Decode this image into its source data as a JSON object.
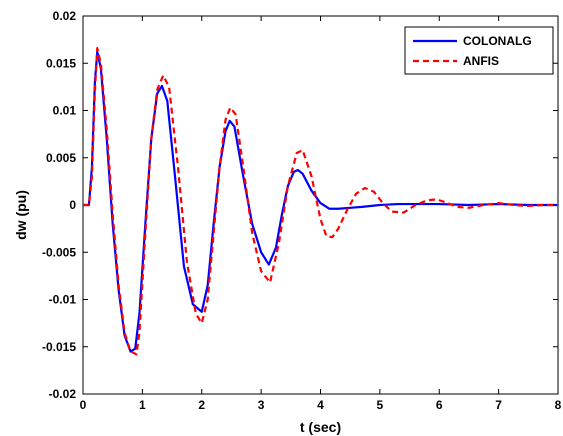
{
  "chart_data": {
    "type": "line",
    "title": "",
    "xlabel": "t (sec)",
    "ylabel": "dw (pu)",
    "xlim": [
      0,
      8
    ],
    "ylim": [
      -0.02,
      0.02
    ],
    "xticks": [
      0,
      1,
      2,
      3,
      4,
      5,
      6,
      7,
      8
    ],
    "xtick_labels": [
      "0",
      "1",
      "2",
      "3",
      "4",
      "5",
      "6",
      "7",
      "8"
    ],
    "yticks": [
      -0.02,
      -0.015,
      -0.01,
      -0.005,
      0,
      0.005,
      0.01,
      0.015,
      0.02
    ],
    "ytick_labels": [
      "-0.02",
      "-0.015",
      "-0.01",
      "-0.005",
      "0",
      "0.005",
      "0.01",
      "0.015",
      "0.02"
    ],
    "grid": false,
    "legend_position": "top-right",
    "series": [
      {
        "name": "COLONALG",
        "color": "#0000ff",
        "style": "solid",
        "x": [
          0,
          0.1,
          0.15,
          0.2,
          0.24,
          0.3,
          0.4,
          0.5,
          0.6,
          0.7,
          0.8,
          0.88,
          0.95,
          1.05,
          1.15,
          1.25,
          1.33,
          1.42,
          1.55,
          1.7,
          1.85,
          2.0,
          2.1,
          2.2,
          2.3,
          2.4,
          2.47,
          2.55,
          2.7,
          2.85,
          3.0,
          3.13,
          3.25,
          3.35,
          3.45,
          3.55,
          3.62,
          3.7,
          3.85,
          4.0,
          4.15,
          4.3,
          4.5,
          4.7,
          5.0,
          5.3,
          5.6,
          6.0,
          6.5,
          7.0,
          7.5,
          8.0
        ],
        "y": [
          0,
          0,
          0.004,
          0.013,
          0.0162,
          0.0145,
          0.007,
          -0.002,
          -0.009,
          -0.0138,
          -0.0155,
          -0.0152,
          -0.0115,
          -0.002,
          0.007,
          0.0118,
          0.0126,
          0.011,
          0.003,
          -0.0065,
          -0.0105,
          -0.0113,
          -0.0085,
          -0.002,
          0.004,
          0.0078,
          0.0089,
          0.0083,
          0.003,
          -0.002,
          -0.005,
          -0.0063,
          -0.0045,
          -0.001,
          0.002,
          0.0035,
          0.0037,
          0.0033,
          0.0015,
          0.0002,
          -0.0004,
          -0.0004,
          -0.0003,
          -0.0002,
          0.0,
          0.0001,
          0.0001,
          0.0001,
          0.0,
          0.0001,
          0.0,
          0.0
        ]
      },
      {
        "name": "ANFIS",
        "color": "#ff0000",
        "style": "dashed",
        "x": [
          0,
          0.1,
          0.15,
          0.2,
          0.24,
          0.3,
          0.4,
          0.5,
          0.6,
          0.7,
          0.8,
          0.9,
          0.95,
          1.05,
          1.15,
          1.25,
          1.35,
          1.45,
          1.6,
          1.75,
          1.9,
          2.0,
          2.1,
          2.2,
          2.3,
          2.4,
          2.48,
          2.57,
          2.7,
          2.85,
          3.0,
          3.15,
          3.3,
          3.45,
          3.6,
          3.7,
          3.85,
          4.0,
          4.1,
          4.2,
          4.3,
          4.45,
          4.6,
          4.75,
          4.9,
          5.05,
          5.2,
          5.4,
          5.6,
          5.8,
          5.95,
          6.1,
          6.3,
          6.5,
          6.75,
          7.0,
          7.25,
          7.5,
          7.75,
          8.0
        ],
        "y": [
          0,
          0,
          0.003,
          0.012,
          0.0166,
          0.015,
          0.008,
          -0.001,
          -0.0085,
          -0.0135,
          -0.0155,
          -0.0158,
          -0.0135,
          -0.003,
          0.007,
          0.0122,
          0.0137,
          0.0125,
          0.004,
          -0.006,
          -0.0115,
          -0.0125,
          -0.01,
          -0.003,
          0.004,
          0.009,
          0.0103,
          0.0096,
          0.004,
          -0.003,
          -0.007,
          -0.0082,
          -0.004,
          0.002,
          0.0055,
          0.0058,
          0.003,
          -0.0015,
          -0.0033,
          -0.0034,
          -0.0025,
          -0.0005,
          0.0012,
          0.0018,
          0.0014,
          0.0002,
          -0.0007,
          -0.0008,
          0.0,
          0.0005,
          0.0006,
          0.0003,
          -0.0002,
          -0.0003,
          0.0,
          0.0002,
          0.0,
          -0.0001,
          0.0,
          0.0
        ]
      }
    ]
  }
}
